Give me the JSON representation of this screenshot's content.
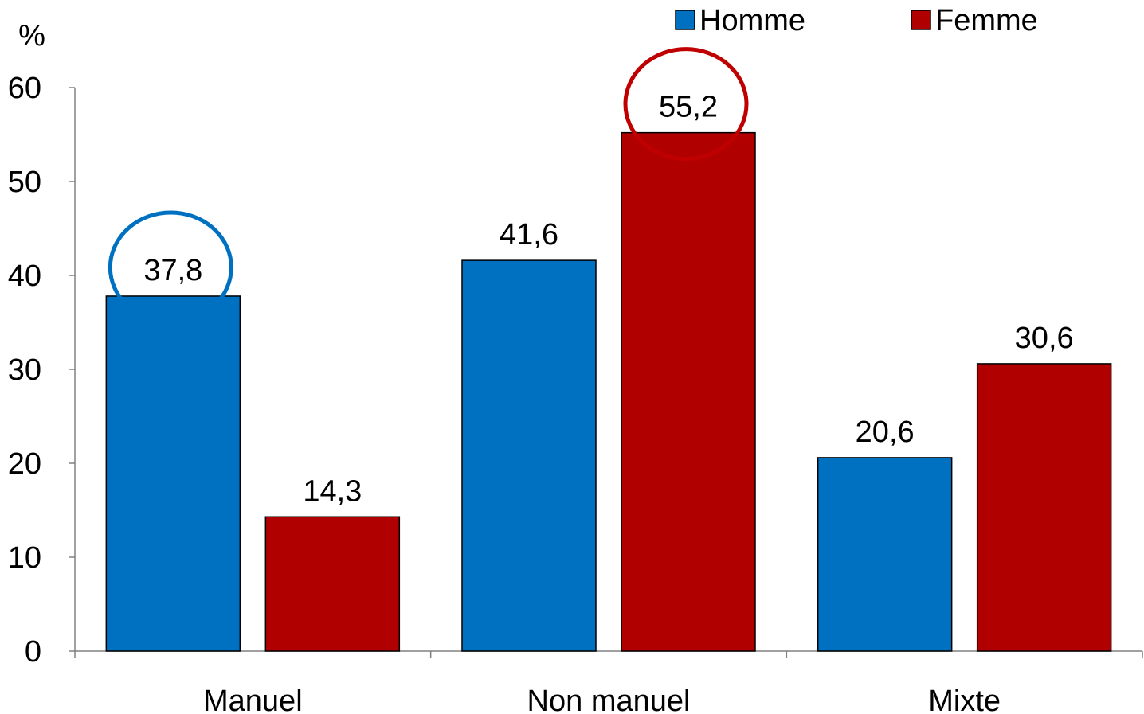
{
  "chart_data": {
    "type": "bar",
    "ylabel": "%",
    "ylim": [
      0,
      60
    ],
    "yticks": [
      0,
      10,
      20,
      30,
      40,
      50,
      60
    ],
    "categories": [
      "Manuel",
      "Non manuel",
      "Mixte"
    ],
    "series": [
      {
        "name": "Homme",
        "color": "#0070C0",
        "values": [
          37.8,
          41.6,
          20.6
        ],
        "labels": [
          "37,8",
          "41,6",
          "20,6"
        ]
      },
      {
        "name": "Femme",
        "color": "#B00000",
        "values": [
          14.3,
          55.2,
          30.6
        ],
        "labels": [
          "14,3",
          "55,2",
          "30,6"
        ]
      }
    ],
    "highlights": [
      {
        "series": 0,
        "category": 0,
        "color": "#0070C0"
      },
      {
        "series": 1,
        "category": 1,
        "color": "#C00000"
      }
    ],
    "legend_position": "top-right",
    "grid": false
  }
}
